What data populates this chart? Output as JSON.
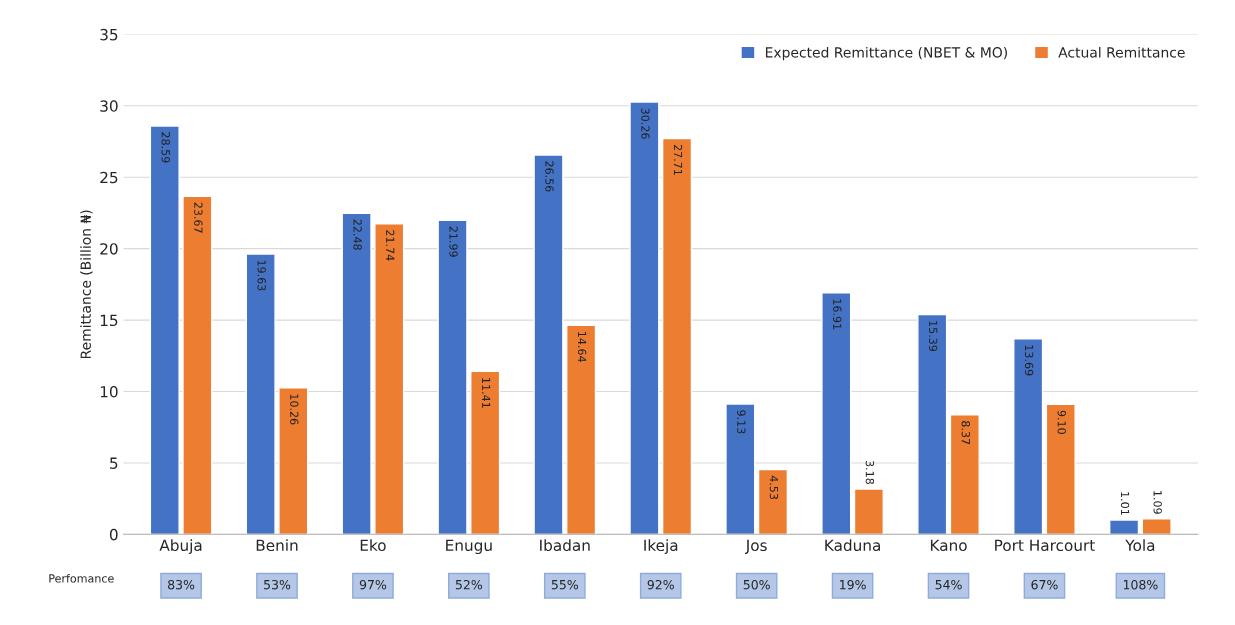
{
  "chart_data": {
    "type": "bar",
    "ylabel": "Remittance (Billion ₦)",
    "categories": [
      "Abuja",
      "Benin",
      "Eko",
      "Enugu",
      "Ibadan",
      "Ikeja",
      "Jos",
      "Kaduna",
      "Kano",
      "Port Harcourt",
      "Yola"
    ],
    "series": [
      {
        "name": "Expected Remittance (NBET & MO)",
        "color": "#4472c4",
        "values": [
          28.59,
          19.63,
          22.48,
          21.99,
          26.56,
          30.26,
          9.13,
          16.91,
          15.39,
          13.69,
          1.01
        ],
        "value_labels": [
          "28.59",
          "19.63",
          "22.48",
          "21.99",
          "26.56",
          "30.26",
          "9.13",
          "16.91",
          "15.39",
          "13.69",
          "1.01"
        ]
      },
      {
        "name": "Actual Remittance",
        "color": "#ed7d31",
        "values": [
          23.67,
          10.26,
          21.74,
          11.41,
          14.64,
          27.71,
          4.53,
          3.18,
          8.37,
          9.1,
          1.09
        ],
        "value_labels": [
          "23.67",
          "10.26",
          "21.74",
          "11.41",
          "14.64",
          "27.71",
          "4.53",
          "3.18",
          "8.37",
          "9.10",
          "1.09"
        ]
      }
    ],
    "ylim": [
      0,
      35
    ],
    "yticks": [
      0,
      5,
      10,
      15,
      20,
      25,
      30,
      35
    ],
    "grid": "y",
    "legend": "top right",
    "annotations": [
      "Perfomance",
      "83%",
      "53%",
      "97%",
      "52%",
      "55%",
      "92%",
      "50%",
      "19%",
      "54%",
      "67%",
      "108%"
    ]
  }
}
